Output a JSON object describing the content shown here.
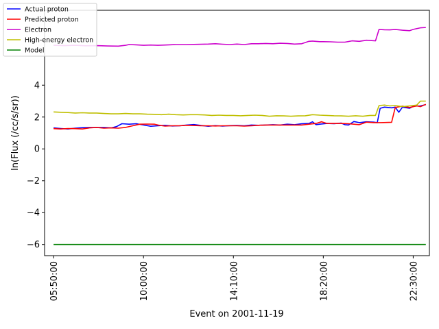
{
  "chart_data": {
    "type": "line",
    "title": "",
    "xlabel": "Event on 2001-11-19",
    "ylabel": "ln(Flux (/cc/s/sr))",
    "x_ticks": [
      "05:50:00",
      "10:00:00",
      "14:10:00",
      "18:20:00",
      "22:30:00"
    ],
    "x_tick_minutes": [
      350,
      600,
      850,
      1100,
      1350
    ],
    "xlim_minutes": [
      325,
      1395
    ],
    "y_ticks": [
      -6,
      -4,
      -2,
      0,
      2,
      4
    ],
    "ylim": [
      -6.7,
      8.7
    ],
    "grid": false,
    "legend_position": "top-left",
    "series": [
      {
        "name": "Actual proton",
        "color": "#0000ff",
        "points": [
          [
            350,
            1.32
          ],
          [
            370,
            1.28
          ],
          [
            390,
            1.25
          ],
          [
            410,
            1.3
          ],
          [
            430,
            1.33
          ],
          [
            450,
            1.35
          ],
          [
            470,
            1.34
          ],
          [
            490,
            1.35
          ],
          [
            510,
            1.32
          ],
          [
            525,
            1.4
          ],
          [
            540,
            1.58
          ],
          [
            560,
            1.55
          ],
          [
            580,
            1.58
          ],
          [
            600,
            1.5
          ],
          [
            620,
            1.42
          ],
          [
            640,
            1.45
          ],
          [
            660,
            1.48
          ],
          [
            680,
            1.44
          ],
          [
            700,
            1.45
          ],
          [
            720,
            1.5
          ],
          [
            740,
            1.53
          ],
          [
            760,
            1.47
          ],
          [
            780,
            1.42
          ],
          [
            800,
            1.46
          ],
          [
            820,
            1.43
          ],
          [
            840,
            1.46
          ],
          [
            860,
            1.47
          ],
          [
            880,
            1.45
          ],
          [
            900,
            1.5
          ],
          [
            920,
            1.48
          ],
          [
            940,
            1.5
          ],
          [
            960,
            1.52
          ],
          [
            980,
            1.5
          ],
          [
            1000,
            1.55
          ],
          [
            1020,
            1.52
          ],
          [
            1040,
            1.58
          ],
          [
            1060,
            1.6
          ],
          [
            1070,
            1.7
          ],
          [
            1080,
            1.52
          ],
          [
            1090,
            1.55
          ],
          [
            1110,
            1.6
          ],
          [
            1130,
            1.58
          ],
          [
            1150,
            1.62
          ],
          [
            1160,
            1.52
          ],
          [
            1170,
            1.5
          ],
          [
            1185,
            1.72
          ],
          [
            1200,
            1.65
          ],
          [
            1220,
            1.7
          ],
          [
            1240,
            1.68
          ],
          [
            1250,
            1.65
          ],
          [
            1258,
            2.55
          ],
          [
            1270,
            2.62
          ],
          [
            1290,
            2.58
          ],
          [
            1300,
            2.62
          ],
          [
            1310,
            2.3
          ],
          [
            1320,
            2.62
          ],
          [
            1340,
            2.55
          ],
          [
            1350,
            2.68
          ],
          [
            1370,
            2.7
          ],
          [
            1385,
            2.78
          ]
        ]
      },
      {
        "name": "Predicted proton",
        "color": "#ff0000",
        "points": [
          [
            350,
            1.27
          ],
          [
            370,
            1.25
          ],
          [
            390,
            1.28
          ],
          [
            410,
            1.27
          ],
          [
            430,
            1.25
          ],
          [
            450,
            1.32
          ],
          [
            470,
            1.35
          ],
          [
            490,
            1.3
          ],
          [
            510,
            1.32
          ],
          [
            530,
            1.3
          ],
          [
            550,
            1.35
          ],
          [
            570,
            1.45
          ],
          [
            590,
            1.55
          ],
          [
            610,
            1.56
          ],
          [
            630,
            1.55
          ],
          [
            640,
            1.5
          ],
          [
            660,
            1.43
          ],
          [
            680,
            1.45
          ],
          [
            700,
            1.45
          ],
          [
            720,
            1.48
          ],
          [
            740,
            1.47
          ],
          [
            760,
            1.45
          ],
          [
            780,
            1.45
          ],
          [
            800,
            1.44
          ],
          [
            820,
            1.45
          ],
          [
            840,
            1.45
          ],
          [
            860,
            1.45
          ],
          [
            880,
            1.43
          ],
          [
            900,
            1.45
          ],
          [
            920,
            1.48
          ],
          [
            940,
            1.5
          ],
          [
            960,
            1.5
          ],
          [
            980,
            1.5
          ],
          [
            1000,
            1.5
          ],
          [
            1020,
            1.5
          ],
          [
            1040,
            1.5
          ],
          [
            1060,
            1.55
          ],
          [
            1080,
            1.6
          ],
          [
            1095,
            1.7
          ],
          [
            1110,
            1.6
          ],
          [
            1130,
            1.6
          ],
          [
            1150,
            1.6
          ],
          [
            1170,
            1.58
          ],
          [
            1185,
            1.55
          ],
          [
            1200,
            1.52
          ],
          [
            1220,
            1.68
          ],
          [
            1240,
            1.65
          ],
          [
            1260,
            1.65
          ],
          [
            1290,
            1.67
          ],
          [
            1300,
            2.6
          ],
          [
            1320,
            2.68
          ],
          [
            1340,
            2.6
          ],
          [
            1360,
            2.7
          ],
          [
            1370,
            2.65
          ],
          [
            1385,
            2.8
          ]
        ]
      },
      {
        "name": "Electron",
        "color": "#cc00cc",
        "points": [
          [
            350,
            6.5
          ],
          [
            380,
            6.48
          ],
          [
            410,
            6.5
          ],
          [
            440,
            6.47
          ],
          [
            470,
            6.48
          ],
          [
            500,
            6.46
          ],
          [
            530,
            6.45
          ],
          [
            550,
            6.5
          ],
          [
            560,
            6.55
          ],
          [
            580,
            6.53
          ],
          [
            600,
            6.5
          ],
          [
            620,
            6.52
          ],
          [
            640,
            6.5
          ],
          [
            660,
            6.52
          ],
          [
            690,
            6.55
          ],
          [
            720,
            6.55
          ],
          [
            750,
            6.56
          ],
          [
            780,
            6.58
          ],
          [
            800,
            6.6
          ],
          [
            820,
            6.57
          ],
          [
            840,
            6.55
          ],
          [
            860,
            6.58
          ],
          [
            880,
            6.55
          ],
          [
            900,
            6.6
          ],
          [
            920,
            6.6
          ],
          [
            940,
            6.62
          ],
          [
            960,
            6.6
          ],
          [
            980,
            6.63
          ],
          [
            1000,
            6.62
          ],
          [
            1020,
            6.58
          ],
          [
            1040,
            6.6
          ],
          [
            1060,
            6.75
          ],
          [
            1070,
            6.77
          ],
          [
            1090,
            6.73
          ],
          [
            1100,
            6.73
          ],
          [
            1120,
            6.72
          ],
          [
            1140,
            6.7
          ],
          [
            1160,
            6.7
          ],
          [
            1180,
            6.78
          ],
          [
            1200,
            6.75
          ],
          [
            1220,
            6.82
          ],
          [
            1245,
            6.78
          ],
          [
            1255,
            7.5
          ],
          [
            1270,
            7.48
          ],
          [
            1285,
            7.47
          ],
          [
            1300,
            7.5
          ],
          [
            1320,
            7.45
          ],
          [
            1340,
            7.42
          ],
          [
            1350,
            7.5
          ],
          [
            1370,
            7.6
          ],
          [
            1385,
            7.62
          ]
        ]
      },
      {
        "name": "High-energy electron",
        "color": "#bfbf00",
        "points": [
          [
            350,
            2.32
          ],
          [
            370,
            2.3
          ],
          [
            390,
            2.28
          ],
          [
            410,
            2.25
          ],
          [
            430,
            2.27
          ],
          [
            450,
            2.25
          ],
          [
            470,
            2.25
          ],
          [
            490,
            2.22
          ],
          [
            510,
            2.2
          ],
          [
            530,
            2.2
          ],
          [
            550,
            2.22
          ],
          [
            570,
            2.2
          ],
          [
            590,
            2.2
          ],
          [
            610,
            2.18
          ],
          [
            630,
            2.17
          ],
          [
            650,
            2.15
          ],
          [
            670,
            2.18
          ],
          [
            690,
            2.15
          ],
          [
            710,
            2.13
          ],
          [
            730,
            2.15
          ],
          [
            750,
            2.15
          ],
          [
            770,
            2.13
          ],
          [
            790,
            2.1
          ],
          [
            810,
            2.12
          ],
          [
            830,
            2.1
          ],
          [
            850,
            2.1
          ],
          [
            870,
            2.08
          ],
          [
            890,
            2.1
          ],
          [
            910,
            2.12
          ],
          [
            930,
            2.1
          ],
          [
            950,
            2.05
          ],
          [
            970,
            2.08
          ],
          [
            990,
            2.07
          ],
          [
            1010,
            2.05
          ],
          [
            1030,
            2.07
          ],
          [
            1050,
            2.08
          ],
          [
            1070,
            2.15
          ],
          [
            1090,
            2.12
          ],
          [
            1110,
            2.1
          ],
          [
            1130,
            2.08
          ],
          [
            1150,
            2.07
          ],
          [
            1170,
            2.05
          ],
          [
            1190,
            2.08
          ],
          [
            1210,
            2.05
          ],
          [
            1230,
            2.1
          ],
          [
            1245,
            2.1
          ],
          [
            1255,
            2.72
          ],
          [
            1270,
            2.75
          ],
          [
            1285,
            2.7
          ],
          [
            1300,
            2.72
          ],
          [
            1320,
            2.65
          ],
          [
            1340,
            2.7
          ],
          [
            1360,
            2.75
          ],
          [
            1370,
            3.0
          ],
          [
            1385,
            3.0
          ]
        ]
      },
      {
        "name": "Model",
        "color": "#008000",
        "points": [
          [
            350,
            -6.0
          ],
          [
            1385,
            -6.0
          ]
        ]
      }
    ]
  }
}
